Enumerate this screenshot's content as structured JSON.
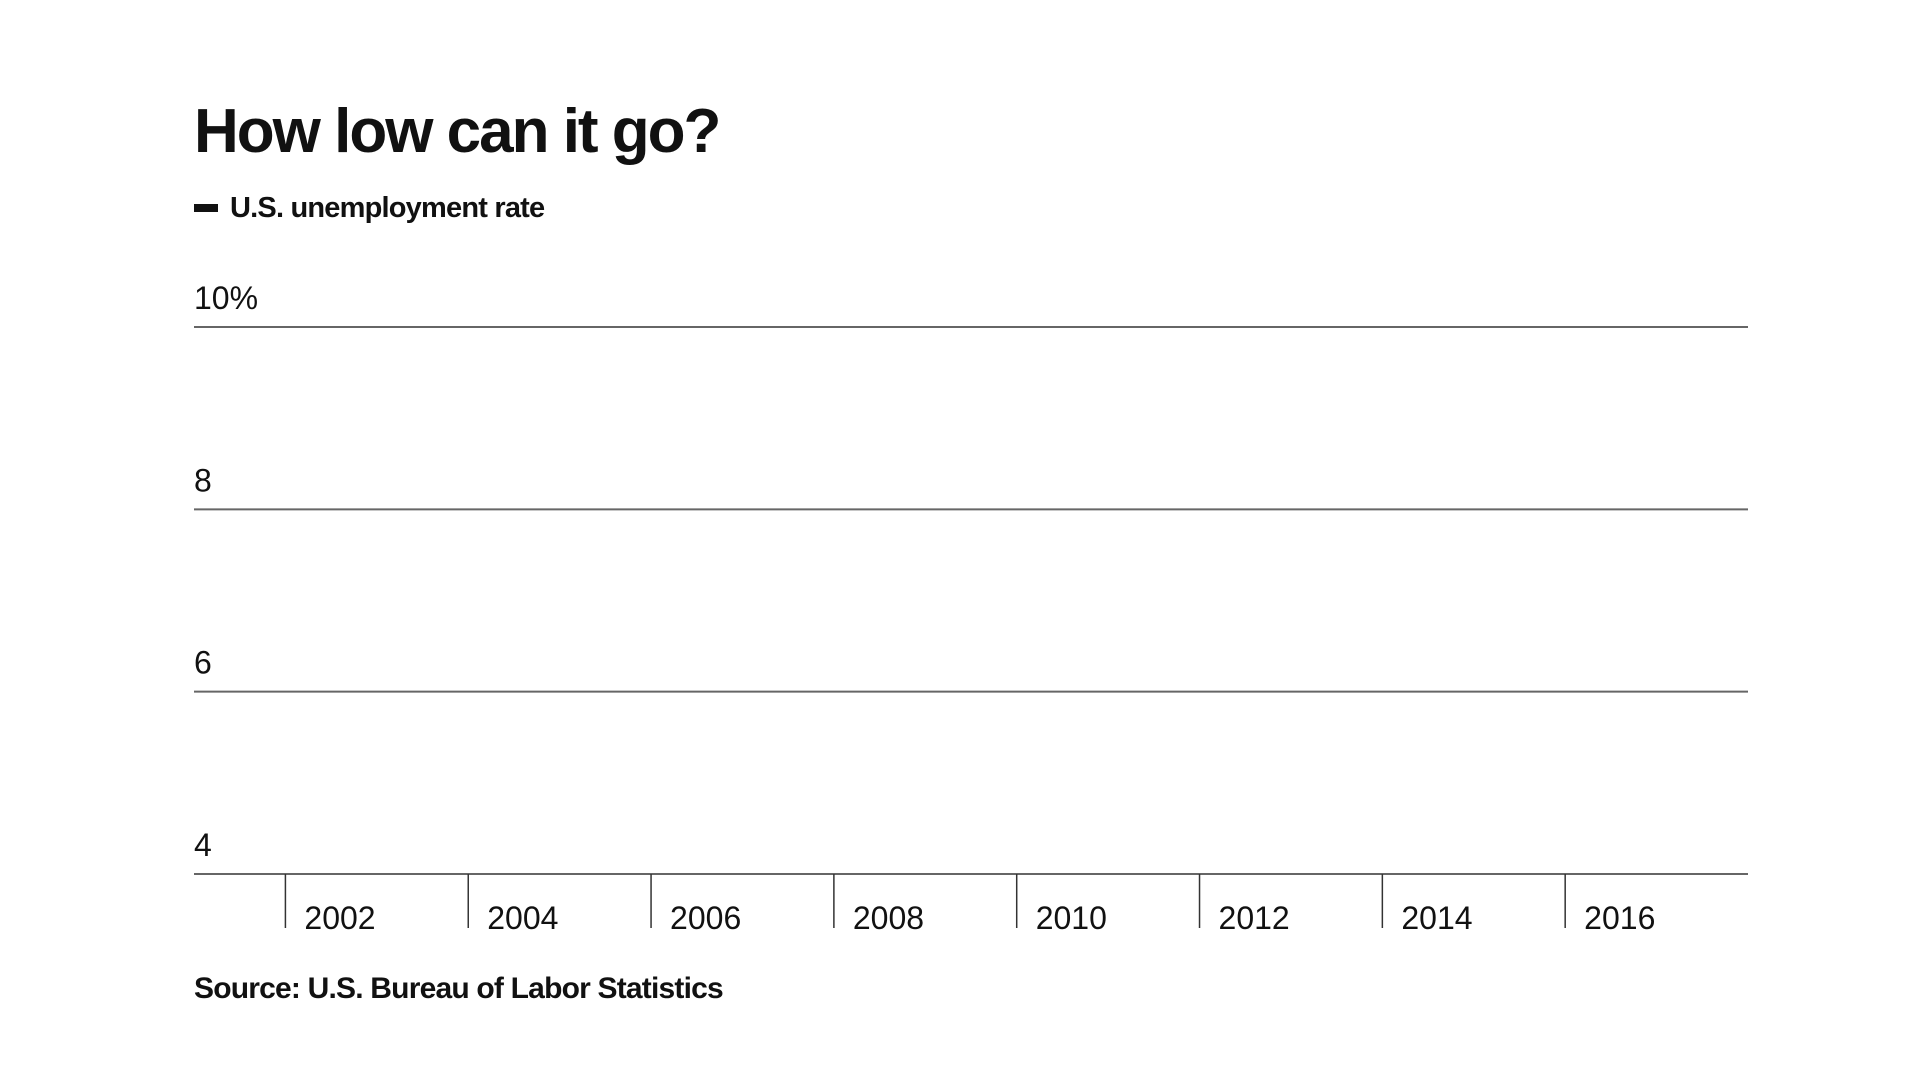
{
  "chart_data": {
    "type": "line",
    "title": "How low can it go?",
    "series": [
      {
        "name": "U.S. unemployment rate",
        "color": "#111111",
        "values": []
      }
    ],
    "x_tick_labels": [
      "2002",
      "2004",
      "2006",
      "2008",
      "2010",
      "2012",
      "2014",
      "2016"
    ],
    "xlim": [
      2001,
      2018
    ],
    "y_tick_labels": [
      "10%",
      "8",
      "6",
      "4"
    ],
    "y_ticks": [
      10,
      8,
      6,
      4
    ],
    "ylim": [
      4,
      10
    ],
    "grid": true,
    "legend_position": "top-left",
    "source": "Source: U.S. Bureau of Labor Statistics"
  }
}
